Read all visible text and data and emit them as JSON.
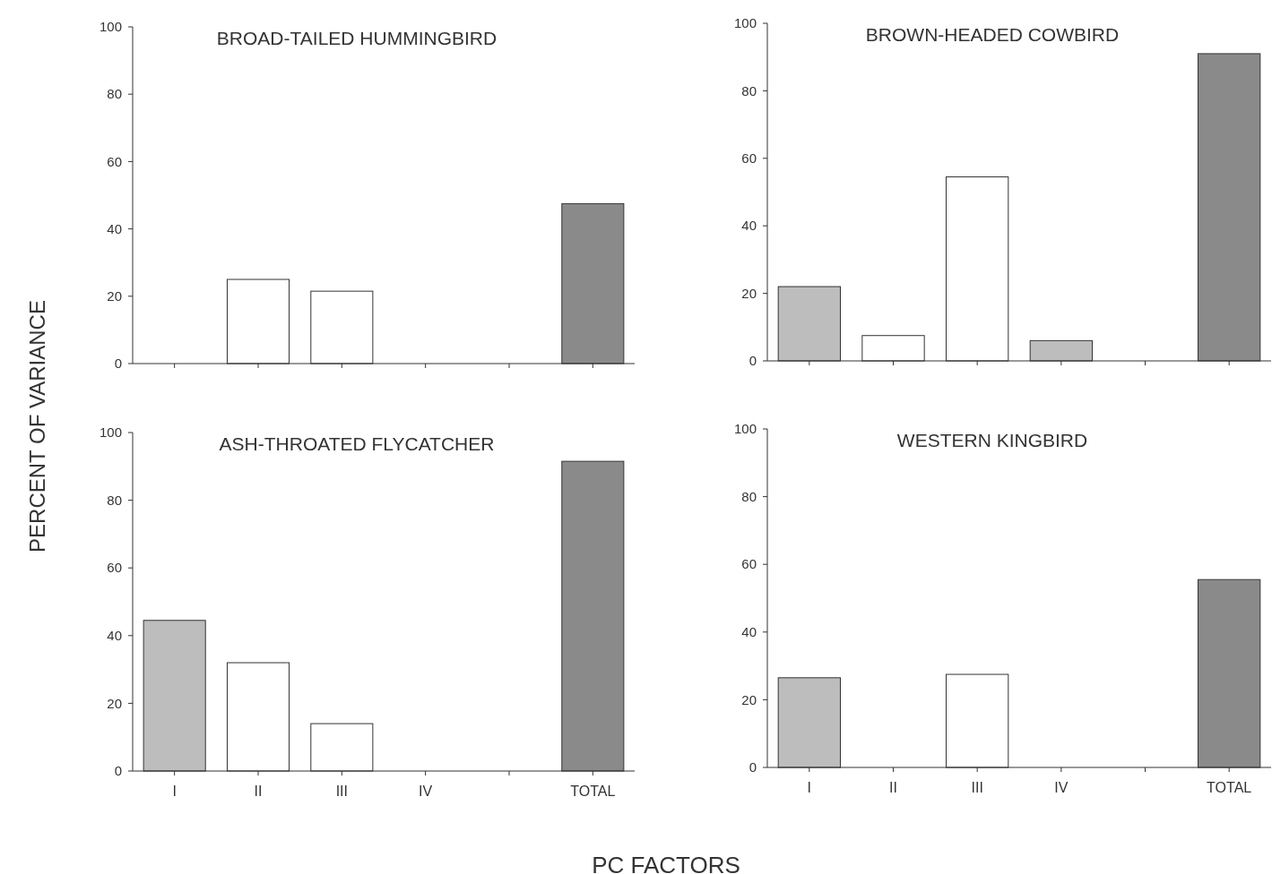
{
  "chart_data": [
    {
      "type": "bar",
      "title": "BROAD-TAILED HUMMINGBIRD",
      "categories": [
        null,
        null,
        null,
        null,
        null,
        null
      ],
      "values": [
        0,
        25,
        21.5,
        0,
        null,
        47.5
      ],
      "colors": [
        "#bdbdbd",
        "#ffffff",
        "#ffffff",
        "#bdbdbd",
        null,
        "#8a8a8a"
      ],
      "ylim": [
        0,
        100
      ],
      "yticks": [
        0,
        20,
        40,
        60,
        80,
        100
      ],
      "ylabel": "PERCENT OF VARIANCE",
      "grid": false
    },
    {
      "type": "bar",
      "title": "BROWN-HEADED COWBIRD",
      "categories": [
        null,
        null,
        null,
        null,
        null,
        null
      ],
      "values": [
        22,
        7.5,
        54.5,
        6,
        null,
        91
      ],
      "colors": [
        "#bdbdbd",
        "#ffffff",
        "#ffffff",
        "#bdbdbd",
        null,
        "#8a8a8a"
      ],
      "ylim": [
        0,
        100
      ],
      "yticks": [
        0,
        20,
        40,
        60,
        80,
        100
      ],
      "grid": false
    },
    {
      "type": "bar",
      "title": "ASH-THROATED FLYCATCHER",
      "categories": [
        "I",
        "II",
        "III",
        "IV",
        null,
        "TOTAL"
      ],
      "values": [
        44.5,
        32,
        14,
        0,
        null,
        91.5
      ],
      "colors": [
        "#bdbdbd",
        "#ffffff",
        "#ffffff",
        "#bdbdbd",
        null,
        "#8a8a8a"
      ],
      "ylim": [
        0,
        100
      ],
      "yticks": [
        0,
        20,
        40,
        60,
        80,
        100
      ],
      "xlabel": "PC FACTORS",
      "grid": false
    },
    {
      "type": "bar",
      "title": "WESTERN KINGBIRD",
      "categories": [
        "I",
        "II",
        "III",
        "IV",
        null,
        "TOTAL"
      ],
      "values": [
        26.5,
        0,
        27.5,
        0,
        null,
        55.5
      ],
      "colors": [
        "#bdbdbd",
        "#ffffff",
        "#ffffff",
        "#bdbdbd",
        null,
        "#8a8a8a"
      ],
      "ylim": [
        0,
        100
      ],
      "yticks": [
        0,
        20,
        40,
        60,
        80,
        100
      ],
      "grid": false
    }
  ]
}
